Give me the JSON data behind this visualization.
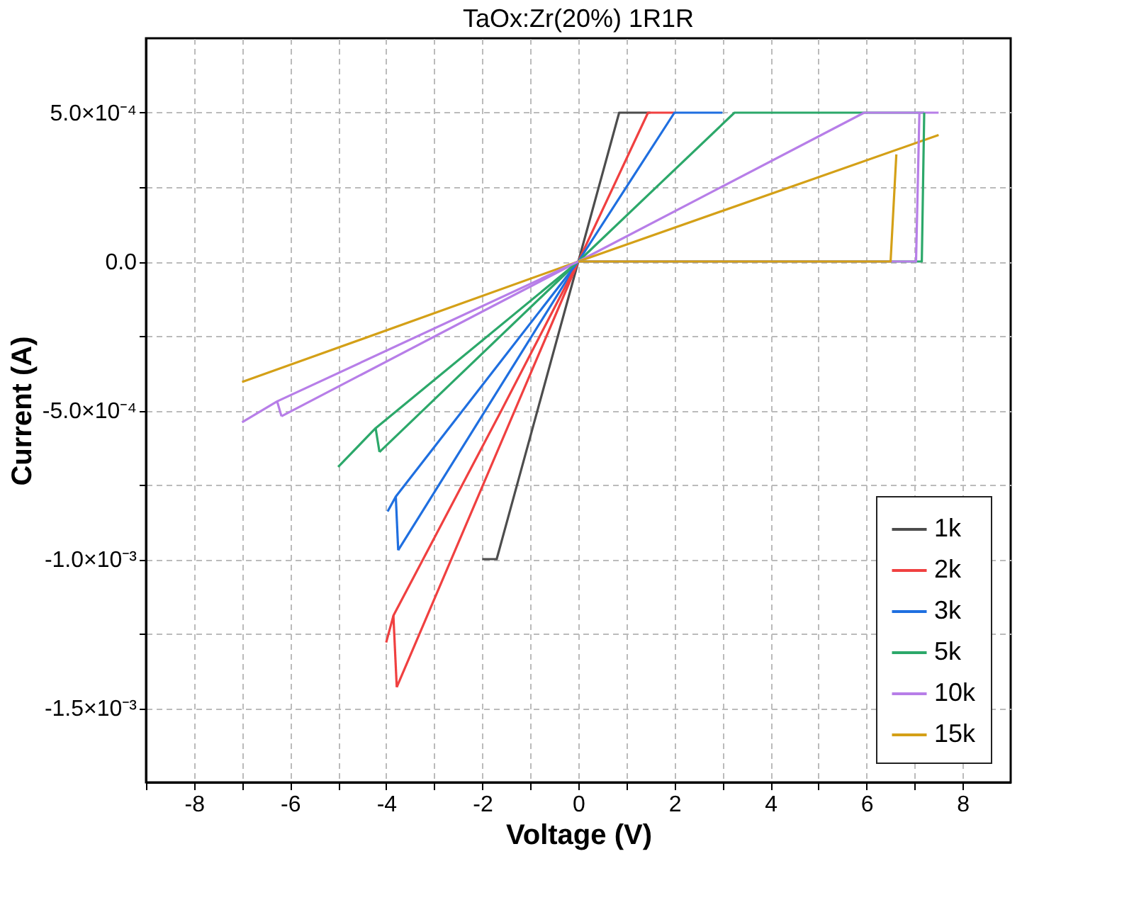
{
  "chart_data": {
    "type": "line",
    "title": "TaOx:Zr(20%) 1R1R",
    "xlabel": "Voltage (V)",
    "ylabel": "Current (A)",
    "xlim": [
      -9,
      9
    ],
    "ylim": [
      -0.00175,
      0.00075
    ],
    "xticks": [
      {
        "value": -9,
        "label": null
      },
      -8,
      {
        "value": -7,
        "label": null
      },
      -6,
      {
        "value": -5,
        "label": null
      },
      -4,
      {
        "value": -3,
        "label": null
      },
      -2,
      {
        "value": -1,
        "label": null
      },
      0,
      {
        "value": 1,
        "label": null
      },
      2,
      {
        "value": 3,
        "label": null
      },
      4,
      {
        "value": 5,
        "label": null
      },
      6,
      {
        "value": 7,
        "label": null
      },
      8
    ],
    "yticks": [
      {
        "value": -0.0015,
        "label": "-1.5×10⁻³"
      },
      {
        "value": -0.00125,
        "label": null
      },
      {
        "value": -0.001,
        "label": "-1.0×10⁻³"
      },
      {
        "value": -0.00075,
        "label": null
      },
      {
        "value": -0.0005,
        "label": "-5.0×10⁻⁴"
      },
      {
        "value": -0.00025,
        "label": null
      },
      {
        "value": 0,
        "label": "0.0"
      },
      {
        "value": 0.00025,
        "label": null
      },
      {
        "value": 0.0005,
        "label": "5.0×10⁻⁴"
      }
    ],
    "grid": true,
    "legend": "bottom right",
    "marker": "none",
    "line_style": "solid",
    "series": [
      {
        "name": "1k",
        "color": "#4d4d4d",
        "x": [
          -2.0,
          -1.7,
          0,
          0.85,
          1.5
        ],
        "values": [
          -0.001,
          -0.001,
          0,
          0.0005,
          0.0005
        ]
      },
      {
        "name": "2k",
        "color": "#f04040",
        "x": [
          -3.78,
          0,
          1.45,
          2.0
        ],
        "values": [
          -0.00143,
          0,
          0.0005,
          0.0005
        ]
      },
      {
        "color": "#f04040",
        "x": [
          -4.0,
          -3.85,
          -1.6,
          0
        ],
        "values": [
          -0.00128,
          -0.00119,
          -0.0005,
          0
        ]
      },
      {
        "color": "#f04040",
        "x": [
          -3.85,
          -3.78
        ],
        "values": [
          -0.00119,
          -0.00143
        ]
      },
      {
        "name": "3k",
        "color": "#1f6fe0",
        "x": [
          -3.75,
          0,
          2.0,
          3.0
        ],
        "values": [
          -0.00097,
          0,
          0.0005,
          0.0005
        ]
      },
      {
        "color": "#1f6fe0",
        "x": [
          -3.97,
          -3.8,
          0
        ],
        "values": [
          -0.00084,
          -0.00079,
          0
        ]
      },
      {
        "color": "#1f6fe0",
        "x": [
          -3.8,
          -3.75
        ],
        "values": [
          -0.00079,
          -0.00097
        ]
      },
      {
        "name": "5k",
        "color": "#2ca86a",
        "x": [
          -4.14,
          0,
          3.25,
          7.2
        ],
        "values": [
          -0.00064,
          0,
          0.0005,
          0.0005
        ]
      },
      {
        "color": "#2ca86a",
        "x": [
          -5.0,
          -4.22,
          0,
          7.15,
          7.2
        ],
        "values": [
          -0.00069,
          -0.00056,
          0,
          0,
          0.0005
        ]
      },
      {
        "color": "#2ca86a",
        "x": [
          -4.22,
          -4.14
        ],
        "values": [
          -0.00056,
          -0.00064
        ]
      },
      {
        "name": "10k",
        "color": "#b77ee8",
        "x": [
          -6.18,
          0,
          5.95,
          7.5
        ],
        "values": [
          -0.00052,
          0,
          0.0005,
          0.0005
        ]
      },
      {
        "color": "#b77ee8",
        "x": [
          -7.0,
          -6.27,
          0,
          7.03,
          7.1
        ],
        "values": [
          -0.00054,
          -0.00047,
          0,
          0,
          0.0005
        ]
      },
      {
        "color": "#b77ee8",
        "x": [
          -6.27,
          -6.18
        ],
        "values": [
          -0.00047,
          -0.00052
        ]
      },
      {
        "name": "15k",
        "color": "#d4a017",
        "x": [
          -7.0,
          0,
          7.5
        ],
        "values": [
          -0.000405,
          0,
          0.000425
        ]
      },
      {
        "color": "#d4a017",
        "x": [
          0,
          6.5,
          6.62
        ],
        "values": [
          0,
          0,
          0.00036
        ]
      }
    ]
  }
}
